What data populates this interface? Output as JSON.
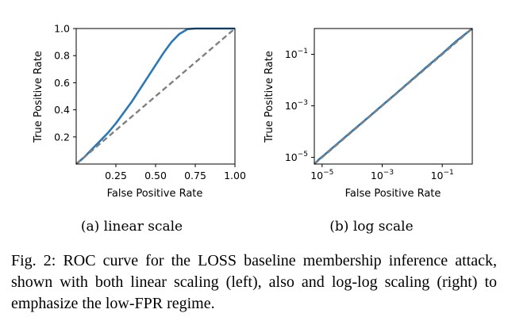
{
  "chart_data": [
    {
      "type": "line",
      "subcaption": "(a) linear scale",
      "xlabel": "False Positive Rate",
      "ylabel": "True Positive Rate",
      "xscale": "linear",
      "yscale": "linear",
      "xlim": [
        0,
        1
      ],
      "ylim": [
        0,
        1
      ],
      "xticks": [
        0.25,
        0.5,
        0.75,
        1.0
      ],
      "xtick_labels": [
        "0.25",
        "0.50",
        "0.75",
        "1.00"
      ],
      "yticks": [
        0.2,
        0.4,
        0.6,
        0.8,
        1.0
      ],
      "ytick_labels": [
        "0.2",
        "0.4",
        "0.6",
        "0.8",
        "1.0"
      ],
      "grid": false,
      "series": [
        {
          "style": "solid",
          "color": "#2a78b5",
          "x": [
            0,
            0.05,
            0.1,
            0.15,
            0.2,
            0.25,
            0.3,
            0.35,
            0.4,
            0.45,
            0.5,
            0.55,
            0.6,
            0.65,
            0.7,
            0.75,
            0.8,
            0.85,
            0.9,
            0.95,
            1.0
          ],
          "y": [
            0,
            0.05,
            0.11,
            0.17,
            0.23,
            0.3,
            0.38,
            0.46,
            0.55,
            0.64,
            0.73,
            0.82,
            0.9,
            0.96,
            0.995,
            1.0,
            1.0,
            1.0,
            1.0,
            1.0,
            1.0
          ]
        },
        {
          "style": "dashed",
          "color": "#808080",
          "x": [
            0,
            1
          ],
          "y": [
            0,
            1
          ]
        }
      ]
    },
    {
      "type": "line",
      "subcaption": "(b) log scale",
      "xlabel": "False Positive Rate",
      "ylabel": "True Positive Rate",
      "xscale": "log",
      "yscale": "log",
      "xlim": [
        5.5e-06,
        1
      ],
      "ylim": [
        5.5e-06,
        1
      ],
      "xticks": [
        1e-05,
        0.001,
        0.1
      ],
      "xtick_labels": [
        "10",
        "10",
        "10"
      ],
      "xtick_exponents": [
        "−5",
        "−3",
        "−1"
      ],
      "yticks": [
        1e-05,
        0.001,
        0.1
      ],
      "ytick_labels": [
        "10",
        "10",
        "10"
      ],
      "ytick_exponents": [
        "−5",
        "−3",
        "−1"
      ],
      "grid": false,
      "series": [
        {
          "style": "solid",
          "color": "#2a78b5",
          "x": [
            5.5e-06,
            8e-06,
            1.2e-05,
            2e-05,
            4e-05,
            0.0001,
            0.0003,
            0.001,
            0.003,
            0.01,
            0.03,
            0.1,
            0.3,
            1.0
          ],
          "y": [
            5.5e-06,
            8.5e-06,
            1.25e-05,
            2.1e-05,
            4.2e-05,
            0.000105,
            0.00031,
            0.00104,
            0.0031,
            0.0105,
            0.032,
            0.106,
            0.33,
            1.0
          ]
        },
        {
          "style": "dashed",
          "color": "#808080",
          "x": [
            5.5e-06,
            1
          ],
          "y": [
            5.5e-06,
            1
          ]
        }
      ]
    }
  ],
  "caption": "Fig. 2: ROC curve for the LOSS baseline membership inference attack, shown with both linear scaling (left), also and log-log scaling (right) to emphasize the low-FPR regime."
}
